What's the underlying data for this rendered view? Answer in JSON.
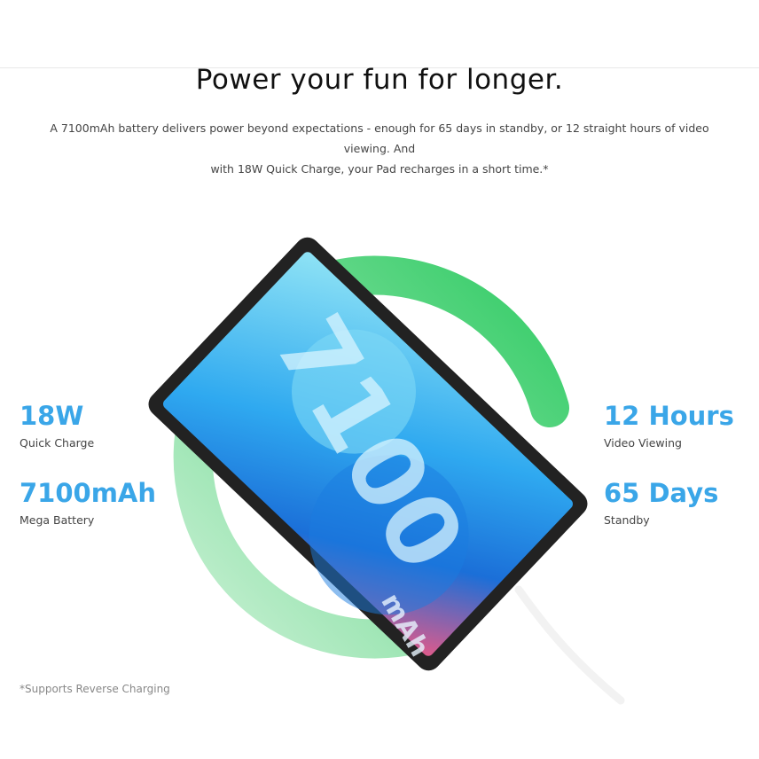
{
  "title": "Power your fun for longer.",
  "description_line1": "A 7100mAh battery delivers power beyond expectations - enough for 65 days in standby, or 12 straight hours of video viewing. And",
  "description_line2": "with 18W Quick Charge, your Pad recharges in a short time.*",
  "stats": [
    {
      "value": "18W",
      "label": "Quick Charge"
    },
    {
      "value": "7100mAh",
      "label": "Mega Battery"
    },
    {
      "value": "12 Hours",
      "label": "Video Viewing"
    },
    {
      "value": "65 Days",
      "label": "Standby"
    }
  ],
  "screen_text": {
    "number": "7100",
    "unit": "mAh"
  },
  "footnote": "*Supports Reverse Charging",
  "colors": {
    "accent": "#3aa6e8",
    "ring": "#3ecf6a"
  }
}
